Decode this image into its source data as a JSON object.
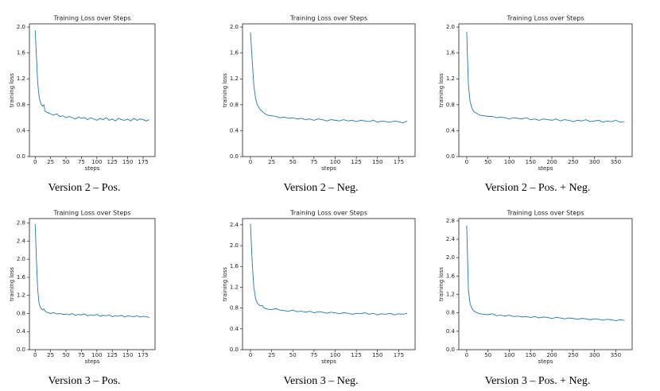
{
  "chart_data": [
    {
      "type": "line",
      "title": "Training Loss over Steps",
      "xlabel": "steps",
      "ylabel": "training loss",
      "caption": "Version 2 – Pos.",
      "color": "#1f77b4",
      "x": [
        0,
        2,
        4,
        6,
        8,
        10,
        12,
        14,
        16,
        20,
        25,
        30,
        35,
        40,
        45,
        50,
        55,
        60,
        65,
        70,
        75,
        80,
        85,
        90,
        95,
        100,
        105,
        110,
        115,
        120,
        125,
        130,
        135,
        140,
        145,
        150,
        155,
        160,
        165,
        170,
        175,
        180,
        185
      ],
      "values": [
        1.95,
        1.55,
        1.15,
        0.95,
        0.85,
        0.8,
        0.78,
        0.8,
        0.7,
        0.68,
        0.66,
        0.64,
        0.66,
        0.62,
        0.63,
        0.6,
        0.62,
        0.6,
        0.58,
        0.61,
        0.59,
        0.6,
        0.57,
        0.6,
        0.58,
        0.56,
        0.59,
        0.57,
        0.6,
        0.56,
        0.58,
        0.55,
        0.59,
        0.57,
        0.56,
        0.58,
        0.55,
        0.59,
        0.56,
        0.58,
        0.57,
        0.55,
        0.57
      ],
      "xlim": [
        -9.35,
        194.35
      ],
      "ylim": [
        0,
        2.05
      ],
      "xticks": [
        0,
        25,
        50,
        75,
        100,
        125,
        150,
        175
      ],
      "yticks": [
        {
          "value": 0,
          "label": "0.0"
        },
        0.4,
        0.8,
        1.2,
        1.6,
        {
          "value": 2,
          "label": "2.0"
        }
      ]
    },
    {
      "type": "line",
      "title": "Training Loss over Steps",
      "xlabel": "steps",
      "ylabel": "training loss",
      "caption": "Version 2 – Neg.",
      "color": "#1f77b4",
      "x": [
        0,
        2,
        4,
        6,
        8,
        10,
        12,
        14,
        16,
        20,
        25,
        30,
        35,
        40,
        45,
        50,
        55,
        60,
        65,
        70,
        75,
        80,
        85,
        90,
        95,
        100,
        105,
        110,
        115,
        120,
        125,
        130,
        135,
        140,
        145,
        150,
        155,
        160,
        165,
        170,
        175,
        180,
        185
      ],
      "values": [
        1.92,
        1.5,
        1.1,
        0.9,
        0.8,
        0.76,
        0.72,
        0.7,
        0.67,
        0.64,
        0.63,
        0.62,
        0.6,
        0.61,
        0.59,
        0.6,
        0.58,
        0.59,
        0.57,
        0.58,
        0.56,
        0.58,
        0.57,
        0.55,
        0.57,
        0.56,
        0.55,
        0.57,
        0.55,
        0.56,
        0.54,
        0.56,
        0.55,
        0.54,
        0.56,
        0.53,
        0.55,
        0.54,
        0.53,
        0.55,
        0.54,
        0.52,
        0.55
      ],
      "xlim": [
        -9.35,
        194.35
      ],
      "ylim": [
        0,
        2.05
      ],
      "xticks": [
        0,
        25,
        50,
        75,
        100,
        125,
        150,
        175
      ],
      "yticks": [
        {
          "value": 0,
          "label": "0.0"
        },
        0.4,
        0.8,
        1.2,
        1.6,
        {
          "value": 2,
          "label": "2.0"
        }
      ]
    },
    {
      "type": "line",
      "title": "Training Loss over Steps",
      "xlabel": "steps",
      "ylabel": "training loss",
      "caption": "Version 2 – Pos. + Neg.",
      "color": "#1f77b4",
      "x": [
        0,
        4,
        8,
        12,
        16,
        20,
        25,
        30,
        40,
        50,
        60,
        70,
        80,
        90,
        100,
        110,
        120,
        130,
        140,
        150,
        160,
        170,
        180,
        190,
        200,
        210,
        220,
        230,
        240,
        250,
        260,
        270,
        280,
        290,
        300,
        310,
        320,
        330,
        340,
        350,
        360,
        370
      ],
      "values": [
        1.93,
        1.1,
        0.85,
        0.75,
        0.7,
        0.68,
        0.66,
        0.64,
        0.63,
        0.62,
        0.62,
        0.6,
        0.61,
        0.6,
        0.58,
        0.6,
        0.59,
        0.58,
        0.6,
        0.57,
        0.58,
        0.56,
        0.58,
        0.57,
        0.56,
        0.58,
        0.55,
        0.57,
        0.56,
        0.54,
        0.56,
        0.55,
        0.57,
        0.54,
        0.55,
        0.56,
        0.53,
        0.55,
        0.54,
        0.56,
        0.53,
        0.54
      ],
      "xlim": [
        -18.5,
        388.5
      ],
      "ylim": [
        0,
        2.05
      ],
      "xticks": [
        0,
        50,
        100,
        150,
        200,
        250,
        300,
        350
      ],
      "yticks": [
        {
          "value": 0,
          "label": "0.0"
        },
        0.4,
        0.8,
        1.2,
        1.6,
        {
          "value": 2,
          "label": "2.0"
        }
      ]
    },
    {
      "type": "line",
      "title": "Training Loss over Steps",
      "xlabel": "steps",
      "ylabel": "training loss",
      "caption": "Version 3 – Pos.",
      "color": "#1f77b4",
      "x": [
        0,
        2,
        4,
        6,
        8,
        10,
        12,
        14,
        16,
        20,
        25,
        30,
        35,
        40,
        45,
        50,
        55,
        60,
        65,
        70,
        75,
        80,
        85,
        90,
        95,
        100,
        105,
        110,
        115,
        120,
        125,
        130,
        135,
        140,
        145,
        150,
        155,
        160,
        165,
        170,
        175,
        180,
        185
      ],
      "values": [
        2.78,
        2.0,
        1.35,
        1.05,
        0.95,
        0.9,
        0.88,
        0.9,
        0.85,
        0.82,
        0.8,
        0.82,
        0.79,
        0.8,
        0.78,
        0.79,
        0.77,
        0.8,
        0.76,
        0.78,
        0.77,
        0.79,
        0.75,
        0.77,
        0.76,
        0.78,
        0.74,
        0.76,
        0.75,
        0.77,
        0.73,
        0.75,
        0.74,
        0.76,
        0.72,
        0.75,
        0.74,
        0.73,
        0.75,
        0.72,
        0.74,
        0.73,
        0.71
      ],
      "xlim": [
        -9.35,
        194.35
      ],
      "ylim": [
        0,
        2.9
      ],
      "xticks": [
        0,
        25,
        50,
        75,
        100,
        125,
        150,
        175
      ],
      "yticks": [
        {
          "value": 0,
          "label": "0.0"
        },
        0.4,
        0.8,
        1.2,
        1.6,
        {
          "value": 2,
          "label": "2.0"
        },
        2.4,
        2.8
      ]
    },
    {
      "type": "line",
      "title": "Training Loss over Steps",
      "xlabel": "steps",
      "ylabel": "training loss",
      "caption": "Version 3 – Neg.",
      "color": "#1f77b4",
      "x": [
        0,
        2,
        4,
        6,
        8,
        10,
        12,
        14,
        16,
        20,
        25,
        30,
        35,
        40,
        45,
        50,
        55,
        60,
        65,
        70,
        75,
        80,
        85,
        90,
        95,
        100,
        105,
        110,
        115,
        120,
        125,
        130,
        135,
        140,
        145,
        150,
        155,
        160,
        165,
        170,
        175,
        180,
        185
      ],
      "values": [
        2.42,
        1.7,
        1.2,
        0.98,
        0.9,
        0.86,
        0.84,
        0.85,
        0.8,
        0.78,
        0.77,
        0.79,
        0.76,
        0.75,
        0.74,
        0.76,
        0.73,
        0.74,
        0.72,
        0.74,
        0.71,
        0.73,
        0.72,
        0.7,
        0.72,
        0.71,
        0.69,
        0.71,
        0.7,
        0.68,
        0.7,
        0.69,
        0.71,
        0.68,
        0.7,
        0.67,
        0.69,
        0.68,
        0.7,
        0.67,
        0.69,
        0.68,
        0.7
      ],
      "xlim": [
        -9.35,
        194.35
      ],
      "ylim": [
        0,
        2.52
      ],
      "xticks": [
        0,
        25,
        50,
        75,
        100,
        125,
        150,
        175
      ],
      "yticks": [
        {
          "value": 0,
          "label": "0.0"
        },
        0.4,
        0.8,
        1.2,
        1.6,
        {
          "value": 2,
          "label": "2.0"
        },
        2.4
      ]
    },
    {
      "type": "line",
      "title": "Training Loss over Steps",
      "xlabel": "steps",
      "ylabel": "training loss",
      "caption": "Version 3 – Pos. + Neg.",
      "color": "#1f77b4",
      "x": [
        0,
        4,
        8,
        12,
        16,
        20,
        25,
        30,
        40,
        50,
        60,
        70,
        80,
        90,
        100,
        110,
        120,
        130,
        140,
        150,
        160,
        170,
        180,
        190,
        200,
        210,
        220,
        230,
        240,
        250,
        260,
        270,
        280,
        290,
        300,
        310,
        320,
        330,
        340,
        350,
        360,
        370
      ],
      "values": [
        2.7,
        1.3,
        1.0,
        0.9,
        0.85,
        0.82,
        0.8,
        0.78,
        0.77,
        0.76,
        0.78,
        0.74,
        0.75,
        0.73,
        0.75,
        0.72,
        0.73,
        0.71,
        0.72,
        0.7,
        0.72,
        0.69,
        0.71,
        0.7,
        0.68,
        0.7,
        0.69,
        0.67,
        0.69,
        0.68,
        0.66,
        0.68,
        0.67,
        0.65,
        0.67,
        0.66,
        0.64,
        0.66,
        0.65,
        0.63,
        0.65,
        0.64
      ],
      "xlim": [
        -18.5,
        388.5
      ],
      "ylim": [
        0,
        2.85
      ],
      "xticks": [
        0,
        50,
        100,
        150,
        200,
        250,
        300,
        350
      ],
      "yticks": [
        {
          "value": 0,
          "label": "0.0"
        },
        0.4,
        0.8,
        1.2,
        1.6,
        {
          "value": 2,
          "label": "2.0"
        },
        2.4,
        2.8
      ]
    }
  ]
}
